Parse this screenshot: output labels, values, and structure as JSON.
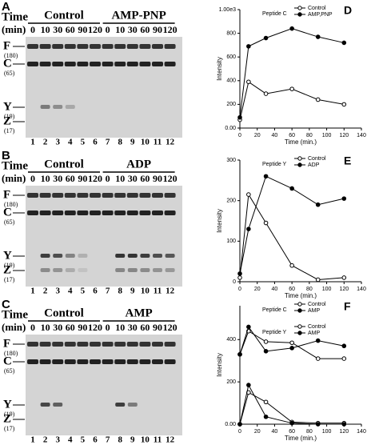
{
  "gels": [
    {
      "letter": "A",
      "time_label": "Time",
      "time_unit": "(min)",
      "groups": [
        "Control",
        "AMP-PNP"
      ],
      "times": [
        "0",
        "10",
        "30",
        "60",
        "90",
        "120",
        "0",
        "10",
        "30",
        "60",
        "90",
        "120"
      ],
      "lanes": [
        "1",
        "2",
        "3",
        "4",
        "5",
        "6",
        "7",
        "8",
        "9",
        "10",
        "11",
        "12"
      ],
      "bands": [
        {
          "label": "F",
          "size": "(180)"
        },
        {
          "label": "C",
          "size": "(65)"
        },
        {
          "label": "Y",
          "size": "(19)"
        },
        {
          "label": "Z",
          "size": "(17)"
        }
      ]
    },
    {
      "letter": "B",
      "time_label": "Time",
      "time_unit": "(min)",
      "groups": [
        "Control",
        "ADP"
      ],
      "times": [
        "0",
        "10",
        "30",
        "60",
        "90",
        "120",
        "0",
        "10",
        "30",
        "60",
        "90",
        "120"
      ],
      "lanes": [
        "1",
        "2",
        "3",
        "4",
        "5",
        "6",
        "7",
        "8",
        "9",
        "10",
        "11",
        "12"
      ],
      "bands": [
        {
          "label": "F",
          "size": "(180)"
        },
        {
          "label": "C",
          "size": "(65)"
        },
        {
          "label": "Y",
          "size": "(19)"
        },
        {
          "label": "Z",
          "size": "(17)"
        }
      ]
    },
    {
      "letter": "C",
      "time_label": "Time",
      "time_unit": "(min)",
      "groups": [
        "Control",
        "AMP"
      ],
      "times": [
        "0",
        "10",
        "30",
        "60",
        "90",
        "120",
        "0",
        "10",
        "30",
        "60",
        "90",
        "120"
      ],
      "lanes": [
        "1",
        "2",
        "3",
        "4",
        "5",
        "6",
        "7",
        "8",
        "9",
        "10",
        "11",
        "12"
      ],
      "bands": [
        {
          "label": "F",
          "size": "(180)"
        },
        {
          "label": "C",
          "size": "(65)"
        },
        {
          "label": "Y",
          "size": "(19)"
        },
        {
          "label": "Z",
          "size": "(17)"
        }
      ]
    }
  ],
  "chart_data": [
    {
      "type": "line",
      "letter": "D",
      "xlabel": "Time (min.)",
      "ylabel": "Intensity",
      "x": [
        0,
        10,
        30,
        60,
        90,
        120
      ],
      "xlim": [
        0,
        140
      ],
      "xticks": [
        0,
        20,
        40,
        60,
        80,
        100,
        120,
        140
      ],
      "ylim": [
        0,
        1000
      ],
      "yticks": [
        {
          "value": 0,
          "label": "0.00"
        },
        200,
        400,
        600,
        800,
        {
          "value": 1000,
          "label": "1.00e3"
        }
      ],
      "groups": [
        {
          "name": "Peptide C",
          "series": [
            {
              "name": "Control",
              "color": "#000000",
              "marker": "open",
              "values": [
                70,
                390,
                290,
                330,
                240,
                200
              ]
            },
            {
              "name": "AMP,PNP",
              "color": "#000000",
              "marker": "filled",
              "values": [
                90,
                690,
                760,
                840,
                770,
                720
              ]
            }
          ]
        }
      ]
    },
    {
      "type": "line",
      "letter": "E",
      "xlabel": "Time (min.)",
      "ylabel": "Intensity",
      "x": [
        0,
        10,
        30,
        60,
        90,
        120
      ],
      "xlim": [
        0,
        140
      ],
      "xticks": [
        0,
        20,
        40,
        60,
        80,
        100,
        120,
        140
      ],
      "ylim": [
        0,
        300
      ],
      "yticks": [
        0,
        100,
        200,
        300
      ],
      "groups": [
        {
          "name": "Peptide Y",
          "series": [
            {
              "name": "Control",
              "color": "#000000",
              "marker": "open",
              "values": [
                10,
                215,
                145,
                40,
                5,
                10
              ]
            },
            {
              "name": "ADP",
              "color": "#000000",
              "marker": "filled",
              "values": [
                20,
                130,
                260,
                230,
                190,
                205
              ]
            }
          ]
        }
      ]
    },
    {
      "type": "line",
      "letter": "F",
      "xlabel": "Time (min.)",
      "ylabel": "Intensity",
      "x": [
        0,
        10,
        30,
        60,
        90,
        120
      ],
      "xlim": [
        0,
        140
      ],
      "xticks": [
        0,
        20,
        40,
        60,
        80,
        100,
        120,
        140
      ],
      "ylim": [
        0,
        560
      ],
      "yticks": [
        {
          "value": 0,
          "label": "0.00"
        },
        200,
        400
      ],
      "groups": [
        {
          "name": "Peptide C",
          "series": [
            {
              "name": "Control",
              "color": "#000000",
              "marker": "open",
              "values": [
                330,
                440,
                390,
                385,
                310,
                310
              ]
            },
            {
              "name": "AMP",
              "color": "#000000",
              "marker": "filled",
              "values": [
                330,
                460,
                345,
                360,
                395,
                370
              ]
            }
          ]
        },
        {
          "name": "Peptide Y",
          "series": [
            {
              "name": "Control",
              "color": "#000000",
              "marker": "open",
              "values": [
                0,
                150,
                105,
                10,
                5,
                5
              ]
            },
            {
              "name": "AMP",
              "color": "#000000",
              "marker": "filled",
              "values": [
                0,
                185,
                35,
                5,
                0,
                0
              ]
            }
          ]
        }
      ]
    }
  ]
}
